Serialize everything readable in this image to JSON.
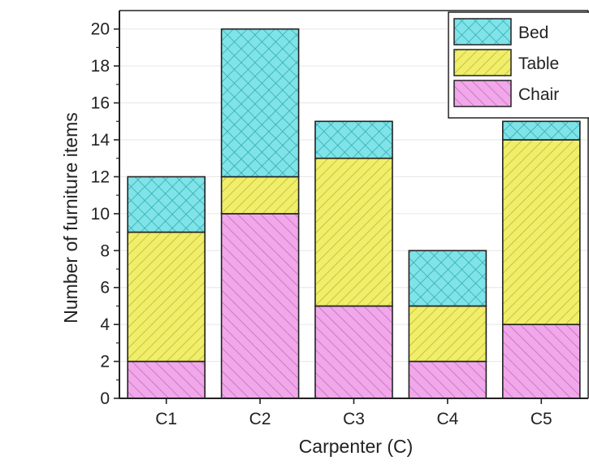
{
  "chart_data": {
    "type": "bar",
    "stacked": true,
    "categories": [
      "C1",
      "C2",
      "C3",
      "C4",
      "C5"
    ],
    "series": [
      {
        "name": "Chair",
        "values": [
          2,
          10,
          5,
          2,
          4
        ],
        "color": "#f0a8e8",
        "hatch": "#cc66cc"
      },
      {
        "name": "Table",
        "values": [
          7,
          2,
          8,
          3,
          10
        ],
        "color": "#f0ee6a",
        "hatch": "#b7b52a"
      },
      {
        "name": "Bed",
        "values": [
          3,
          8,
          2,
          3,
          1
        ],
        "color": "#7fe3e8",
        "hatch": "#2aa4ad"
      }
    ],
    "legend_order": [
      "Bed",
      "Table",
      "Chair"
    ],
    "xlabel": "Carpenter (C)",
    "ylabel": "Number of furniture items",
    "ylim": [
      0,
      21
    ],
    "yticks": [
      0,
      2,
      4,
      6,
      8,
      10,
      12,
      14,
      16,
      18,
      20
    ],
    "grid": true,
    "legend_position": "top-right"
  }
}
